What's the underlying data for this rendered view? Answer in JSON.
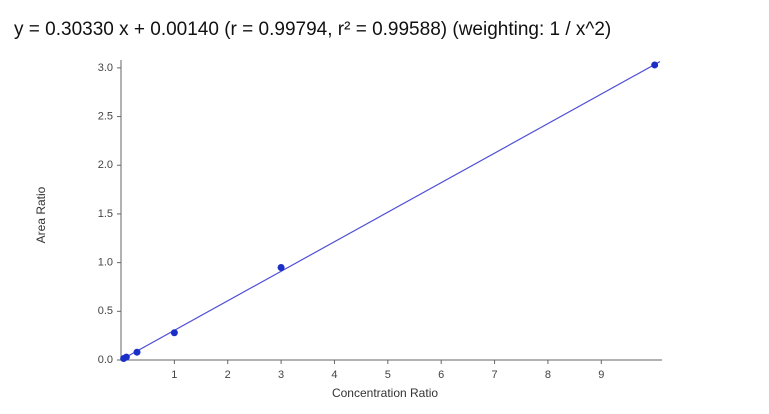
{
  "chart_data": {
    "type": "scatter",
    "title": "y = 0.30330 x + 0.00140 (r = 0.99794, r² = 0.99588)  (weighting: 1 / x^2)",
    "x_label": "Concentration Ratio",
    "y_label": "Area Ratio",
    "x": [
      0.05,
      0.1,
      0.3,
      1,
      3,
      10
    ],
    "values": [
      0.015,
      0.03,
      0.08,
      0.28,
      0.95,
      3.03
    ],
    "color": "#1a2fc8",
    "fit": {
      "slope": 0.3033,
      "intercept": 0.0014,
      "color": "#5050d8"
    },
    "xlim": [
      0,
      10.1
    ],
    "ylim": [
      0,
      3.05
    ],
    "xticks": [
      1,
      2,
      3,
      4,
      5,
      6,
      7,
      8,
      9
    ],
    "yticks": [
      {
        "value": 0,
        "label": "0.0"
      },
      {
        "value": 0.5,
        "label": "0.5"
      },
      {
        "value": 1,
        "label": "1.0"
      },
      {
        "value": 1.5,
        "label": "1.5"
      },
      {
        "value": 2,
        "label": "2.0"
      },
      {
        "value": 2.5,
        "label": "2.5"
      },
      {
        "value": 3,
        "label": "3.0"
      }
    ]
  }
}
